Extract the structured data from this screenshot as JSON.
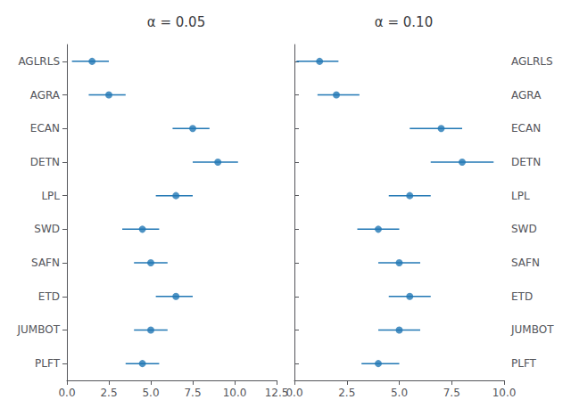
{
  "chart_data": [
    {
      "type": "errorbar",
      "orientation": "horizontal",
      "title": "α = 0.05",
      "categories": [
        "AGLRLS",
        "AGRA",
        "ECAN",
        "DETN",
        "LPL",
        "SWD",
        "SAFN",
        "ETD",
        "JUMBOT",
        "PLFT"
      ],
      "values": [
        1.5,
        2.5,
        7.5,
        9.0,
        6.5,
        4.5,
        5.0,
        6.5,
        5.0,
        4.5
      ],
      "err_minus": [
        1.2,
        1.2,
        1.2,
        1.5,
        1.2,
        1.2,
        1.0,
        1.2,
        1.0,
        1.0
      ],
      "err_plus": [
        1.0,
        1.0,
        1.0,
        1.2,
        1.0,
        1.0,
        1.0,
        1.0,
        1.0,
        1.0
      ],
      "color": "#2077b4",
      "marker": "circle",
      "xlim": [
        0.0,
        12.5
      ],
      "xticks": [
        {
          "value": 0,
          "label": "0.0"
        },
        2.5,
        {
          "value": 5,
          "label": "5.0"
        },
        7.5,
        {
          "value": 10,
          "label": "10.0"
        },
        12.5
      ],
      "grid": false
    },
    {
      "type": "errorbar",
      "orientation": "horizontal",
      "title": "α = 0.10",
      "categories": [
        "AGLRLS",
        "AGRA",
        "ECAN",
        "DETN",
        "LPL",
        "SWD",
        "SAFN",
        "ETD",
        "JUMBOT",
        "PLFT"
      ],
      "values": [
        1.2,
        2.0,
        7.0,
        8.0,
        5.5,
        4.0,
        5.0,
        5.5,
        5.0,
        4.0
      ],
      "err_minus": [
        1.1,
        0.9,
        1.5,
        1.5,
        1.0,
        1.0,
        1.0,
        1.0,
        1.0,
        0.8
      ],
      "err_plus": [
        0.9,
        1.1,
        1.0,
        1.5,
        1.0,
        1.0,
        1.0,
        1.0,
        1.0,
        1.0
      ],
      "color": "#2077b4",
      "marker": "circle",
      "xlim": [
        0.0,
        10.0
      ],
      "xticks": [
        {
          "value": 0,
          "label": "0.0"
        },
        2.5,
        {
          "value": 5,
          "label": "5.0"
        },
        7.5,
        {
          "value": 10,
          "label": "10.0"
        }
      ],
      "grid": false
    }
  ]
}
